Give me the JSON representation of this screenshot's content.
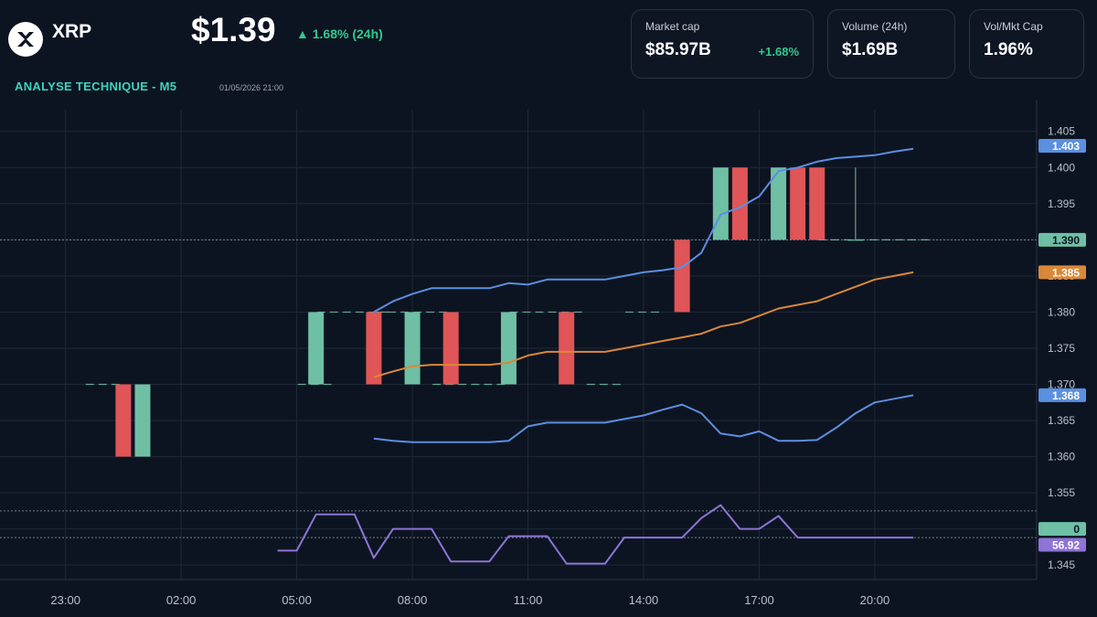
{
  "header": {
    "coin": "XRP",
    "logo_icon": "xrp-logo-icon",
    "price": "$1.39",
    "change_arrow": "▲",
    "change_text": "1.68% (24h)",
    "title": "ANALYSE TECHNIQUE - M5",
    "timestamp": "01/05/2026 21:00"
  },
  "stats": {
    "market_cap": {
      "label": "Market cap",
      "value": "$85.97B",
      "change": "+1.68%"
    },
    "volume": {
      "label": "Volume (24h)",
      "value": "$1.69B"
    },
    "vol_mkt": {
      "label": "Vol/Mkt Cap",
      "value": "1.96%"
    }
  },
  "colors": {
    "background": "#0d1421",
    "grid": "#1f2837",
    "up": "#6fbfa5",
    "down": "#e05557",
    "upper_band": "#5b8fe0",
    "middle_band": "#d9883a",
    "lower_band": "#5b8fe0",
    "rsi": "#8d74d6",
    "axis_text": "#b8c0cc"
  },
  "chart_data": {
    "type": "candlestick",
    "x_ticks": [
      "23:00",
      "02:00",
      "05:00",
      "08:00",
      "11:00",
      "14:00",
      "17:00",
      "20:00"
    ],
    "x_tick_hours": [
      -1,
      2,
      5,
      8,
      11,
      14,
      17,
      20
    ],
    "y_ticks": [
      "1.345",
      "1.350",
      "1.355",
      "1.360",
      "1.365",
      "1.370",
      "1.375",
      "1.380",
      "1.385",
      "1.390",
      "1.395",
      "1.400",
      "1.405"
    ],
    "ylim": [
      1.343,
      1.408
    ],
    "xlim_hours": [
      -2.7,
      24.2
    ],
    "candles": [
      {
        "t": 0.5,
        "o": 1.37,
        "h": 1.37,
        "l": 1.36,
        "c": 1.36
      },
      {
        "t": 1.0,
        "o": 1.36,
        "h": 1.37,
        "l": 1.36,
        "c": 1.37
      },
      {
        "t": 5.5,
        "o": 1.37,
        "h": 1.38,
        "l": 1.37,
        "c": 1.38
      },
      {
        "t": 7.0,
        "o": 1.38,
        "h": 1.38,
        "l": 1.37,
        "c": 1.37
      },
      {
        "t": 8.0,
        "o": 1.37,
        "h": 1.38,
        "l": 1.37,
        "c": 1.38
      },
      {
        "t": 9.0,
        "o": 1.38,
        "h": 1.38,
        "l": 1.37,
        "c": 1.37
      },
      {
        "t": 10.5,
        "o": 1.37,
        "h": 1.38,
        "l": 1.37,
        "c": 1.38
      },
      {
        "t": 12.0,
        "o": 1.38,
        "h": 1.38,
        "l": 1.37,
        "c": 1.37
      },
      {
        "t": 15.0,
        "o": 1.39,
        "h": 1.39,
        "l": 1.38,
        "c": 1.38
      },
      {
        "t": 16.0,
        "o": 1.39,
        "h": 1.4,
        "l": 1.39,
        "c": 1.4
      },
      {
        "t": 16.5,
        "o": 1.4,
        "h": 1.4,
        "l": 1.39,
        "c": 1.39
      },
      {
        "t": 17.5,
        "o": 1.39,
        "h": 1.4,
        "l": 1.39,
        "c": 1.4
      },
      {
        "t": 18.0,
        "o": 1.4,
        "h": 1.4,
        "l": 1.39,
        "c": 1.39
      },
      {
        "t": 18.5,
        "o": 1.4,
        "h": 1.4,
        "l": 1.39,
        "c": 1.39
      },
      {
        "t": 19.5,
        "o": 1.39,
        "h": 1.4,
        "l": 1.39,
        "c": 1.39
      }
    ],
    "dashes": [
      {
        "t": 0.0,
        "v": 1.37
      },
      {
        "t": 5.5,
        "v": 1.37
      },
      {
        "t": 6.0,
        "v": 1.38
      },
      {
        "t": 7.0,
        "v": 1.38
      },
      {
        "t": 7.5,
        "v": 1.38
      },
      {
        "t": 8.5,
        "v": 1.38
      },
      {
        "t": 9.0,
        "v": 1.37
      },
      {
        "t": 10.0,
        "v": 1.37
      },
      {
        "t": 11.0,
        "v": 1.38
      },
      {
        "t": 12.0,
        "v": 1.38
      },
      {
        "t": 13.0,
        "v": 1.37
      },
      {
        "t": 14.0,
        "v": 1.38
      },
      {
        "t": 19.0,
        "v": 1.39
      },
      {
        "t": 20.0,
        "v": 1.39
      },
      {
        "t": 21.0,
        "v": 1.39
      }
    ],
    "series": [
      {
        "t": [
          7.0,
          7.5,
          8.0,
          8.5,
          9.0,
          9.5,
          10.0,
          10.5,
          11.0,
          11.5,
          12.0,
          12.5,
          13.0,
          13.5,
          14.0,
          14.5,
          15.0,
          15.5,
          16.0,
          16.5,
          17.0,
          17.5,
          18.0,
          18.5,
          19.0,
          19.5,
          20.0,
          20.5,
          21.0
        ],
        "values": [
          1.38,
          1.3815,
          1.3825,
          1.3833,
          1.3833,
          1.3833,
          1.3833,
          1.384,
          1.3838,
          1.3845,
          1.3845,
          1.3845,
          1.3845,
          1.385,
          1.3855,
          1.3858,
          1.3862,
          1.3882,
          1.3935,
          1.3945,
          1.396,
          1.3995,
          1.4,
          1.4008,
          1.4013,
          1.4015,
          1.4017,
          1.4022,
          1.4026
        ]
      },
      {
        "t": [
          7.0,
          7.5,
          8.0,
          8.5,
          9.0,
          9.5,
          10.0,
          10.5,
          11.0,
          11.5,
          12.0,
          12.5,
          13.0,
          13.5,
          14.0,
          14.5,
          15.0,
          15.5,
          16.0,
          16.5,
          17.0,
          17.5,
          18.0,
          18.5,
          19.0,
          19.5,
          20.0,
          20.5,
          21.0
        ],
        "values": [
          1.371,
          1.3718,
          1.3725,
          1.3727,
          1.3727,
          1.3727,
          1.3727,
          1.373,
          1.374,
          1.3745,
          1.3745,
          1.3745,
          1.3745,
          1.375,
          1.3755,
          1.376,
          1.3765,
          1.377,
          1.378,
          1.3785,
          1.3795,
          1.3805,
          1.381,
          1.3815,
          1.3825,
          1.3835,
          1.3845,
          1.385,
          1.3855
        ]
      },
      {
        "t": [
          7.0,
          7.5,
          8.0,
          8.5,
          9.0,
          9.5,
          10.0,
          10.5,
          11.0,
          11.5,
          12.0,
          12.5,
          13.0,
          13.5,
          14.0,
          14.5,
          15.0,
          15.5,
          16.0,
          16.5,
          17.0,
          17.5,
          18.0,
          18.5,
          19.0,
          19.5,
          20.0,
          20.5,
          21.0
        ],
        "values": [
          1.3625,
          1.3622,
          1.362,
          1.362,
          1.362,
          1.362,
          1.362,
          1.3622,
          1.3642,
          1.3647,
          1.3647,
          1.3647,
          1.3647,
          1.3652,
          1.3657,
          1.3665,
          1.3672,
          1.366,
          1.3632,
          1.3628,
          1.3635,
          1.3622,
          1.3622,
          1.3623,
          1.364,
          1.366,
          1.3675,
          1.368,
          1.3685
        ]
      }
    ],
    "rsi": {
      "t": [
        4.5,
        5.0,
        5.5,
        6.0,
        6.5,
        7.0,
        7.5,
        8.0,
        8.5,
        9.0,
        9.5,
        10.0,
        10.5,
        11.0,
        11.5,
        12.0,
        12.5,
        13.0,
        13.5,
        14.0,
        14.5,
        15.0,
        15.5,
        16.0,
        16.5,
        17.0,
        17.5,
        18.0,
        18.5,
        19.0,
        19.5,
        20.0,
        20.5,
        21.0
      ],
      "values": [
        1.347,
        1.347,
        1.352,
        1.352,
        1.352,
        1.346,
        1.35,
        1.35,
        1.35,
        1.3455,
        1.3455,
        1.3455,
        1.349,
        1.349,
        1.349,
        1.3452,
        1.3452,
        1.3452,
        1.3488,
        1.3488,
        1.3488,
        1.3488,
        1.3515,
        1.3533,
        1.35,
        1.35,
        1.3518,
        1.3488,
        1.3488,
        1.3488,
        1.3488,
        1.3488,
        1.3488,
        1.3488
      ]
    },
    "hlines": [
      1.39,
      1.3525,
      1.3488
    ],
    "price_labels": [
      {
        "text": "1.403",
        "v": 1.403,
        "color": "#5b8fe0",
        "text_color": "#ffffff"
      },
      {
        "text": "1.390",
        "v": 1.39,
        "color": "#6fbfa5",
        "text_color": "#0d1421"
      },
      {
        "text": "1.385",
        "v": 1.3855,
        "color": "#d9883a",
        "text_color": "#ffffff"
      },
      {
        "text": "1.368",
        "v": 1.3685,
        "color": "#5b8fe0",
        "text_color": "#ffffff"
      },
      {
        "text": "0",
        "v": 1.35,
        "color": "#6fbfa5",
        "text_color": "#0d1421"
      },
      {
        "text": "56.92",
        "v": 1.3478,
        "color": "#8d74d6",
        "text_color": "#ffffff"
      }
    ]
  }
}
